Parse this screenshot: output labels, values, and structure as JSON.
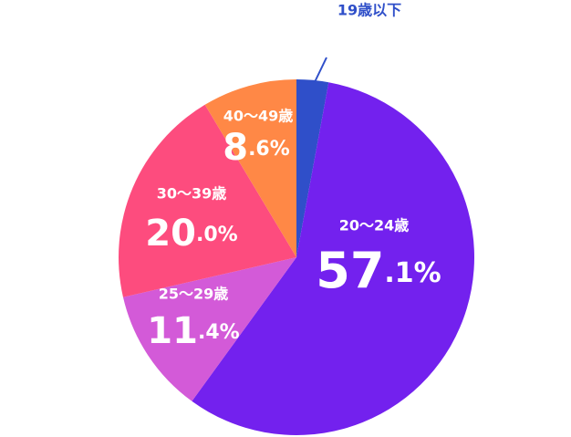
{
  "chart_data": {
    "type": "pie",
    "categories": [
      "19歳以下",
      "20～24歳",
      "25～29歳",
      "30～39歳",
      "40～49歳"
    ],
    "values": [
      2.9,
      57.1,
      11.4,
      20.0,
      8.6
    ],
    "value_labels": [
      null,
      "57.1%",
      "11.4%",
      "20.0%",
      "8.6%"
    ],
    "colors": [
      "#2f4fc9",
      "#7321ee",
      "#d35ad8",
      "#fd4c7e",
      "#ff8846"
    ]
  }
}
